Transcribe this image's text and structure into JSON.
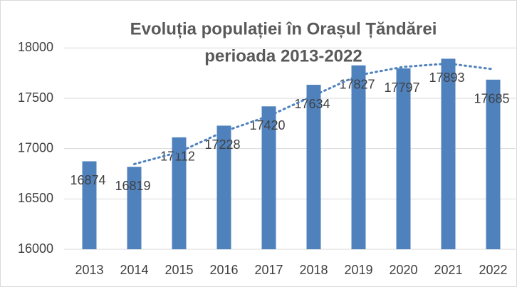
{
  "chart_data": {
    "type": "bar",
    "title": [
      "Evoluția populației în Orașul Țăndărei",
      "perioada 2013-2022"
    ],
    "categories": [
      "2013",
      "2014",
      "2015",
      "2016",
      "2017",
      "2018",
      "2019",
      "2020",
      "2021",
      "2022"
    ],
    "values": [
      16874,
      16819,
      17112,
      17228,
      17420,
      17634,
      17827,
      17797,
      17893,
      17685
    ],
    "color": "#4f81bd",
    "trendline": {
      "values": [
        null,
        16846,
        16966,
        17170,
        17324,
        17527,
        17730,
        17812,
        17845,
        17789
      ],
      "color": "#4f81bd"
    },
    "ylim": [
      16000,
      18250
    ],
    "yticks": [
      16000,
      16500,
      17000,
      17500,
      18000
    ],
    "grid": true
  }
}
